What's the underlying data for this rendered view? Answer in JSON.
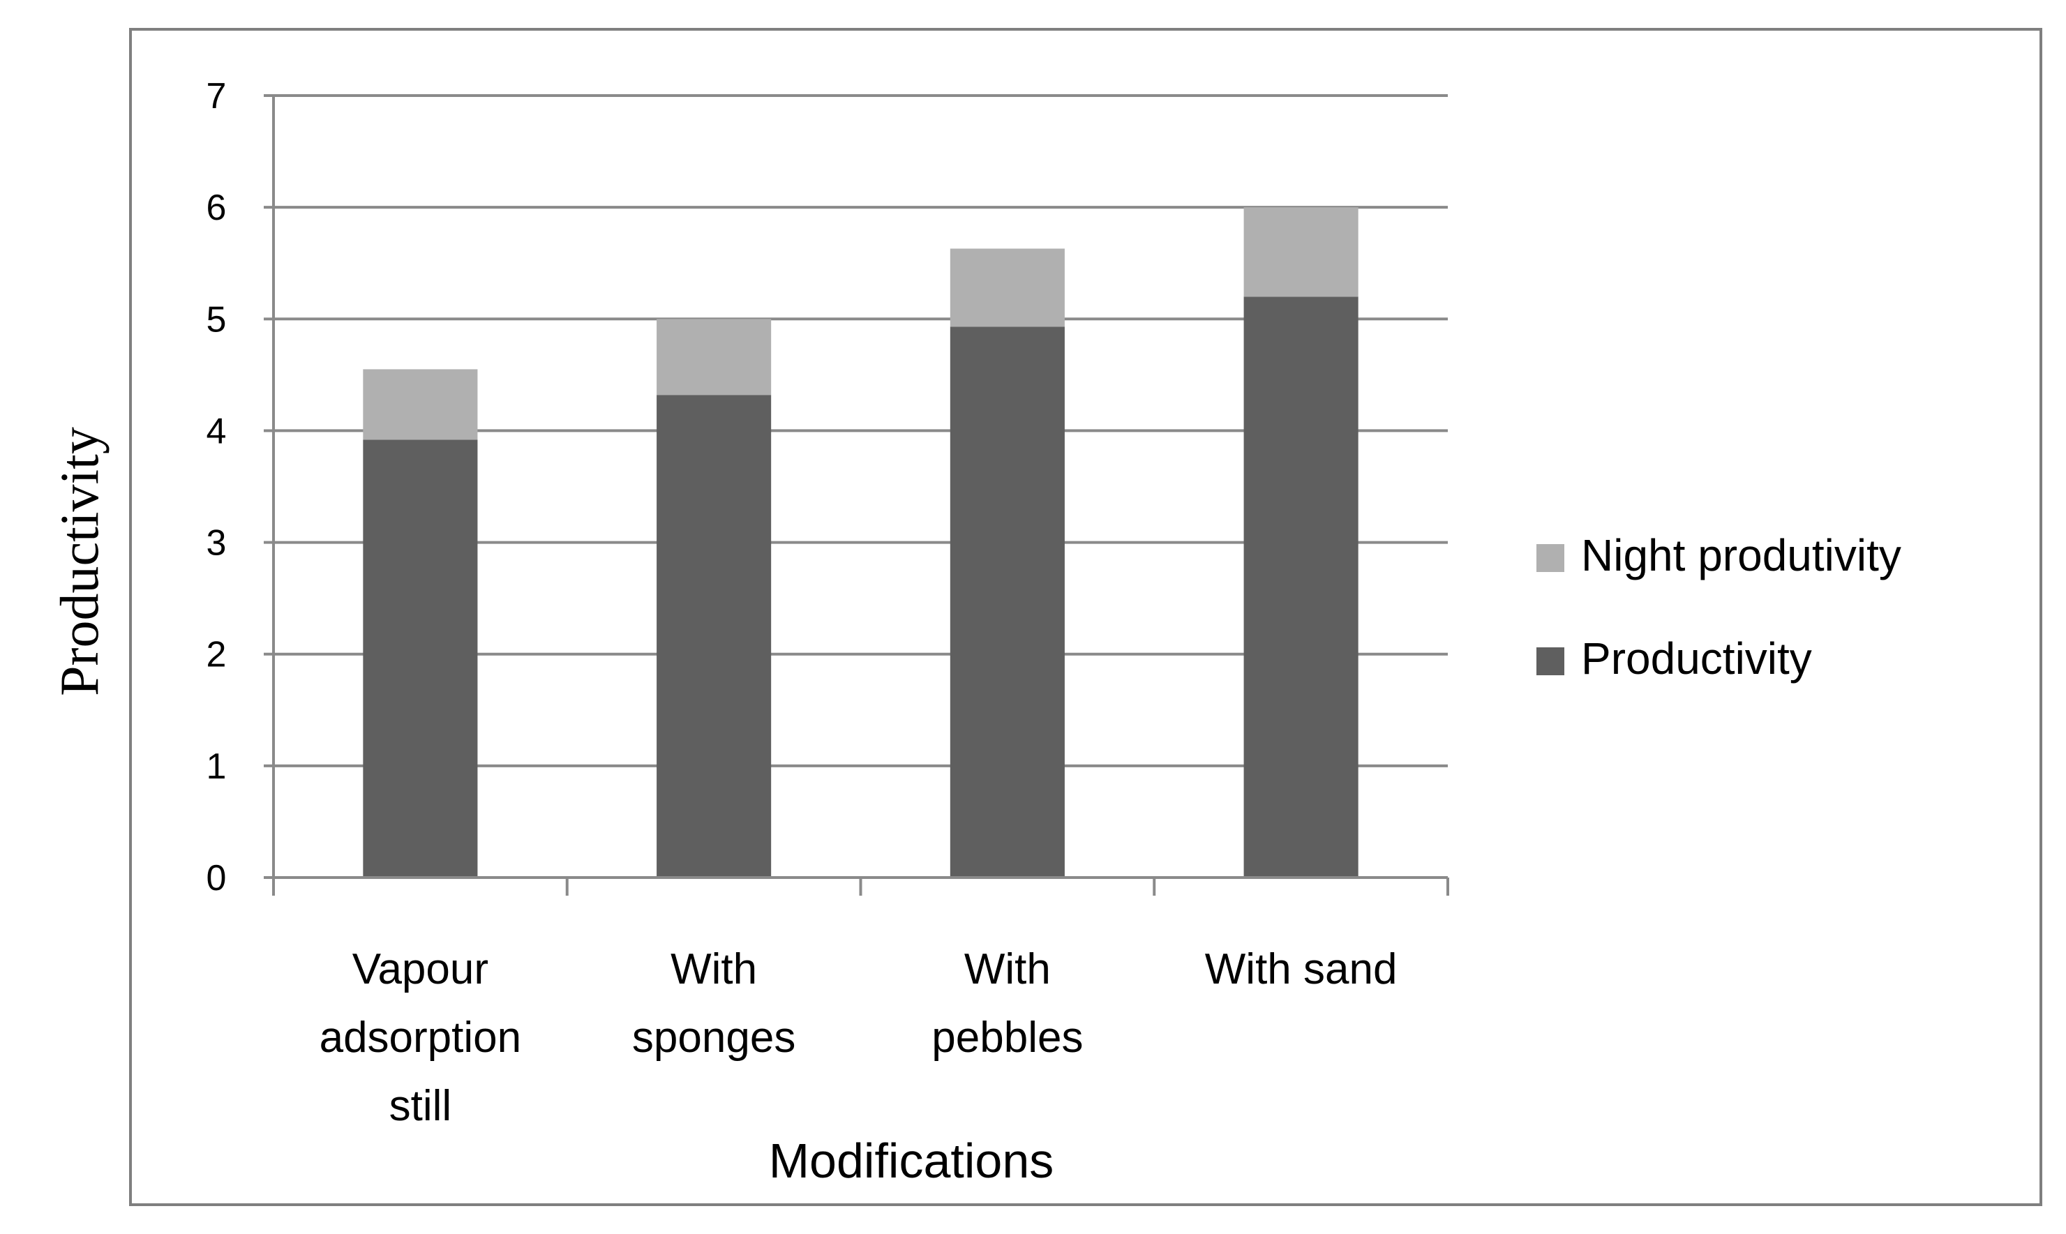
{
  "chart_data": {
    "type": "bar",
    "stacked": true,
    "categories": [
      [
        "Vapour",
        "adsorption",
        "still"
      ],
      [
        "With",
        "sponges"
      ],
      [
        "With",
        "pebbles"
      ],
      [
        "With sand"
      ]
    ],
    "series": [
      {
        "name": "Productivity",
        "values": [
          3.92,
          4.32,
          4.93,
          5.2
        ],
        "color": "#5f5f5f"
      },
      {
        "name": "Night produtivity",
        "values": [
          0.63,
          0.68,
          0.7,
          0.8
        ],
        "color": "#b0b0b0"
      }
    ],
    "title": "",
    "xlabel": "Modifications",
    "ylabel": "Productivity",
    "ylim": [
      0,
      7
    ],
    "yticks": [
      0,
      1,
      2,
      3,
      4,
      5,
      6,
      7
    ],
    "grid": true,
    "legend": "right",
    "legend_order": [
      "Night produtivity",
      "Productivity"
    ]
  }
}
